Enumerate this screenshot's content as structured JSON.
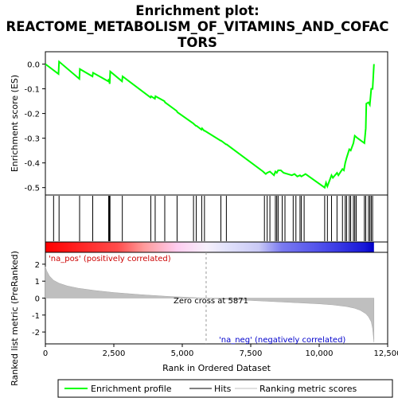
{
  "chart_data": {
    "type": "line",
    "title": "Enrichment plot: REACTOME_METABOLISM_OF_VITAMINS_AND_COFACTORS",
    "title_lines": [
      "Enrichment plot:",
      "REACTOME_METABOLISM_OF_VITAMINS_AND_COFAC",
      "TORS"
    ],
    "xlabel": "Rank in Ordered Dataset",
    "xlim": [
      0,
      12500
    ],
    "x_ticks": [
      0,
      2500,
      5000,
      7500,
      10000,
      12500
    ],
    "x_tick_labels": [
      "0",
      "2,500",
      "5,000",
      "7,500",
      "10,000",
      "12,500"
    ],
    "es_panel": {
      "ylabel": "Enrichment score (ES)",
      "ylim": [
        -0.53,
        0.05
      ],
      "y_ticks": [
        0.0,
        -0.1,
        -0.2,
        -0.3,
        -0.4,
        -0.5
      ],
      "y_tick_labels": [
        "0.0",
        "-0.1",
        "-0.2",
        "-0.3",
        "-0.4",
        "-0.5"
      ],
      "series_name": "Enrichment profile",
      "color": "#00ff00",
      "x": [
        0,
        480,
        500,
        1240,
        1260,
        1720,
        1740,
        2300,
        2320,
        2350,
        2370,
        2800,
        2820,
        3840,
        3860,
        4000,
        4020,
        4350,
        4370,
        4800,
        4820,
        5400,
        5420,
        5500,
        5520,
        5700,
        5720,
        5800,
        5820,
        6400,
        6420,
        6600,
        6620,
        7950,
        8000,
        8050,
        8100,
        8200,
        8350,
        8400,
        8450,
        8500,
        8600,
        8700,
        9000,
        9100,
        9200,
        9300,
        9350,
        9500,
        10200,
        10250,
        10300,
        10450,
        10500,
        10650,
        10700,
        10850,
        10900,
        10950,
        11000,
        11100,
        11150,
        11250,
        11300,
        11400,
        11650,
        11700,
        11720,
        11800,
        11850,
        11900,
        11950,
        12000
      ],
      "y": [
        0.0,
        -0.04,
        0.01,
        -0.06,
        -0.02,
        -0.05,
        -0.035,
        -0.07,
        -0.06,
        -0.08,
        -0.03,
        -0.07,
        -0.05,
        -0.135,
        -0.13,
        -0.14,
        -0.13,
        -0.15,
        -0.155,
        -0.19,
        -0.195,
        -0.24,
        -0.242,
        -0.25,
        -0.25,
        -0.265,
        -0.26,
        -0.27,
        -0.27,
        -0.31,
        -0.31,
        -0.325,
        -0.325,
        -0.435,
        -0.44,
        -0.445,
        -0.44,
        -0.435,
        -0.45,
        -0.435,
        -0.44,
        -0.43,
        -0.43,
        -0.44,
        -0.45,
        -0.445,
        -0.455,
        -0.45,
        -0.455,
        -0.445,
        -0.5,
        -0.48,
        -0.495,
        -0.45,
        -0.46,
        -0.44,
        -0.45,
        -0.425,
        -0.43,
        -0.4,
        -0.38,
        -0.345,
        -0.35,
        -0.32,
        -0.29,
        -0.3,
        -0.32,
        -0.26,
        -0.16,
        -0.155,
        -0.165,
        -0.1,
        -0.1,
        0.0
      ]
    },
    "hits": [
      300,
      500,
      1250,
      1730,
      2310,
      2340,
      2360,
      2810,
      3850,
      4010,
      4360,
      4810,
      5410,
      5510,
      5710,
      5810,
      6410,
      6610,
      8000,
      8100,
      8200,
      8400,
      8450,
      8500,
      8650,
      8750,
      9050,
      9150,
      9300,
      9350,
      9450,
      10200,
      10300,
      10450,
      10650,
      10850,
      10950,
      11000,
      11100,
      11150,
      11250,
      11300,
      11350,
      11650,
      11700,
      11800,
      11850,
      11900,
      11950
    ],
    "ranked_panel": {
      "ylabel": "Ranked list metric (PreRanked)",
      "ylim": [
        -2.7,
        2.7
      ],
      "y_ticks": [
        2,
        1,
        0,
        -1,
        -2
      ],
      "y_tick_labels": [
        "2",
        "1",
        "0",
        "-1",
        "-2"
      ],
      "zero_cross_label": "Zero cross at 5871",
      "zero_cross": 5871,
      "pos_label": "'na_pos' (positively correlated)",
      "neg_label": "'na_neg' (negatively correlated)",
      "x": [
        0,
        50,
        150,
        300,
        500,
        800,
        1200,
        1800,
        2500,
        3500,
        4500,
        5871,
        7000,
        8000,
        9000,
        10000,
        10500,
        11000,
        11300,
        11500,
        11700,
        11800,
        11900,
        11950,
        12000
      ],
      "y": [
        1.85,
        1.6,
        1.3,
        1.05,
        0.88,
        0.72,
        0.58,
        0.45,
        0.33,
        0.2,
        0.1,
        0.0,
        -0.1,
        -0.18,
        -0.26,
        -0.34,
        -0.4,
        -0.5,
        -0.6,
        -0.72,
        -0.92,
        -1.1,
        -1.4,
        -1.8,
        -2.6
      ]
    },
    "legend": {
      "placement": "bottom",
      "items": [
        "Enrichment profile",
        "Hits",
        "Ranking metric scores"
      ]
    }
  }
}
